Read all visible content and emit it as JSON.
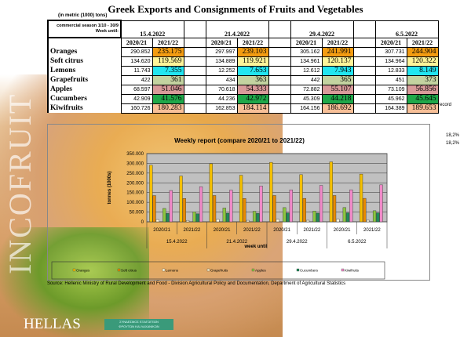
{
  "title": "Greek Exports and Consignments of Fruits and Vegetables",
  "unit_note": "(in metric (1000) tons)",
  "season_label": "commercial season 1/10 - 30/9",
  "week_label": "Week until:",
  "weeks": [
    "15.4.2022",
    "21.4.2022",
    "29.4.2022",
    "6.5.2022"
  ],
  "seasons": [
    "2020/21",
    "2021/22"
  ],
  "products": [
    {
      "name": "Oranges",
      "color": "#f39c12",
      "prev": [
        "290.852",
        "297.997",
        "305.162",
        "307.731"
      ],
      "curr": [
        "235.175",
        "239.103",
        "241.991",
        "244.904"
      ]
    },
    {
      "name": "Soft citrus",
      "color": "#fff59a",
      "prev": [
        "134.620",
        "134.889",
        "134.961",
        "134.964"
      ],
      "curr": [
        "119.569",
        "119.921",
        "120.137",
        "120.322"
      ]
    },
    {
      "name": "Lemons",
      "color": "#22e5f0",
      "prev": [
        "11.743",
        "12.252",
        "12.612",
        "12.833"
      ],
      "curr": [
        "7.355",
        "7.653",
        "7.943",
        "8.149"
      ]
    },
    {
      "name": "Grapefruits",
      "color": "#c3d3a0",
      "prev": [
        "422",
        "434",
        "442",
        "451"
      ],
      "curr": [
        "361",
        "363",
        "365",
        "373"
      ]
    },
    {
      "name": "Apples",
      "color": "#d99a9a",
      "prev": [
        "68.597",
        "70.618",
        "72.882",
        "73.109"
      ],
      "curr": [
        "51.046",
        "54.333",
        "55.107",
        "56.856"
      ]
    },
    {
      "name": "Cucumbers",
      "color": "#1fa84a",
      "prev": [
        "42.909",
        "44.236",
        "45.309",
        "45.962"
      ],
      "curr": [
        "41.576",
        "42.972",
        "44.218",
        "45.645"
      ]
    },
    {
      "name": "Kiwifruits",
      "color": "#f8c098",
      "prev": [
        "160.726",
        "162.853",
        "164.156",
        "164.389"
      ],
      "curr": [
        "180.283",
        "184.114",
        "186.692",
        "189.653"
      ]
    }
  ],
  "record_note": "record",
  "pct_labels": [
    "18,2%",
    "18,2%"
  ],
  "logo_text": "INCOFRUIT",
  "logo_country": "HELLAS",
  "badge_text": "ΣΥΝΔΕΣΜΟΣ ΕΞΑΓΩΓΕΩΝ ΦΡΟΥΤΩΝ ΚΑΙ ΛΑΧΑΝΙΚΩΝ",
  "source": "Source: Hellenic Ministry of Rural Development and Food - Division Agricultural Policy and Documentation, Department of Agricultural Statistics",
  "chart_data": {
    "type": "bar",
    "title": "Weekly report (compare 2020/21 to 2021/22)",
    "ylabel": "tonnes (1000s)",
    "xlabel": "week until",
    "ylim": [
      0,
      350000
    ],
    "yticks": [
      "0",
      "50.000",
      "100.000",
      "150.000",
      "200.000",
      "250.000",
      "300.000",
      "350.000"
    ],
    "categories": [
      [
        "2020/21",
        "15.4.2022"
      ],
      [
        "2021/22",
        "15.4.2022"
      ],
      [
        "2020/21",
        "21.4.2022"
      ],
      [
        "2021/22",
        "21.4.2022"
      ],
      [
        "2020/21",
        "29.4.2022"
      ],
      [
        "2021/22",
        "29.4.2022"
      ],
      [
        "2020/21",
        "6.5.2022"
      ],
      [
        "2021/22",
        "6.5.2022"
      ]
    ],
    "groups": [
      "15.4.2022",
      "21.4.2022",
      "29.4.2022",
      "6.5.2022"
    ],
    "legend_position": "bottom",
    "series": [
      {
        "name": "Oranges",
        "color": "#f5c000",
        "values": [
          290852,
          235175,
          297997,
          239103,
          305162,
          241991,
          307731,
          244904
        ]
      },
      {
        "name": "Soft citrus",
        "color": "#e88a00",
        "values": [
          134620,
          119569,
          134889,
          119921,
          134961,
          120137,
          134964,
          120322
        ]
      },
      {
        "name": "Lemons",
        "color": "#fffbe0",
        "values": [
          11743,
          7355,
          12252,
          7653,
          12612,
          7943,
          12833,
          8149
        ]
      },
      {
        "name": "Grapefruits",
        "color": "#f6e8c0",
        "values": [
          422,
          361,
          434,
          363,
          442,
          365,
          451,
          373
        ]
      },
      {
        "name": "Apples",
        "color": "#8cc63f",
        "values": [
          68597,
          51046,
          70618,
          54333,
          72882,
          55107,
          73109,
          56856
        ]
      },
      {
        "name": "Cucumbers",
        "color": "#1f8a5a",
        "values": [
          42909,
          41576,
          44236,
          42972,
          45309,
          44218,
          45962,
          45645
        ]
      },
      {
        "name": "Kiwifruits",
        "color": "#f08ac8",
        "values": [
          160726,
          180283,
          162853,
          184114,
          164156,
          186692,
          164389,
          189653
        ]
      }
    ]
  }
}
